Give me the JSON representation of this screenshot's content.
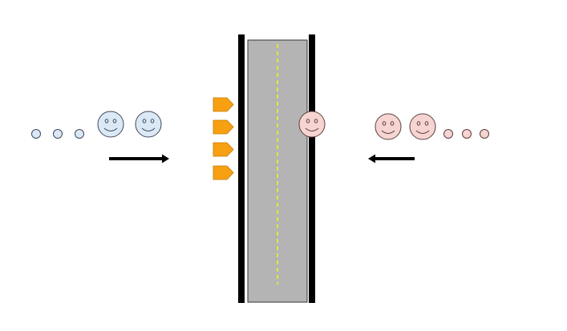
{
  "colors": {
    "background": "#ffffff",
    "left_group_fill": "#dbe8f6",
    "left_group_stroke": "#3f4a5c",
    "right_group_fill": "#f6d4d2",
    "right_group_stroke": "#5c3f3f",
    "road_fill": "#b4b4b4",
    "road_edge": "#000000",
    "lane_marking": "#ffff00",
    "sign_fill": "#f7a012",
    "arrow": "#000000"
  },
  "left_group": {
    "waiting_dots": 3,
    "faces": 2,
    "arrow_direction": "right",
    "icon": "smiley-face-icon"
  },
  "right_group": {
    "waiting_dots": 3,
    "faces": 2,
    "crossing_faces": 1,
    "arrow_direction": "left",
    "icon": "smiley-face-icon"
  },
  "road": {
    "orientation": "vertical",
    "center_line": "dashed",
    "signs": 4,
    "sign_icon": "pentagon-arrow-sign-icon"
  }
}
